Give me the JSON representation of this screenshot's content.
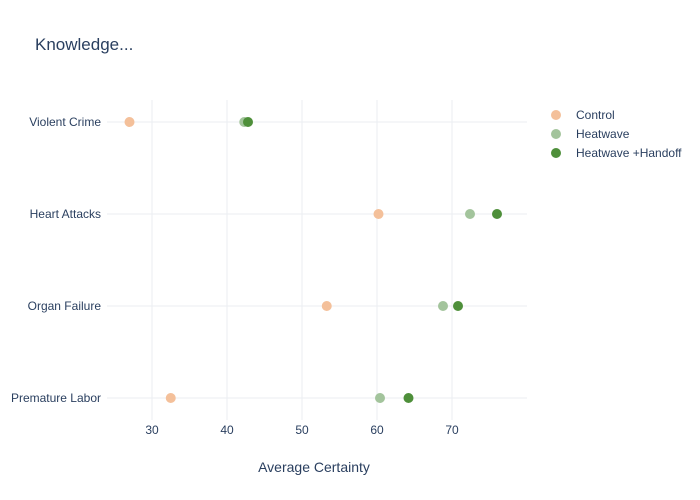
{
  "chart_data": {
    "type": "scatter",
    "title": "Knowledge...",
    "xlabel": "Average Certainty",
    "ylabel": "",
    "xlim": [
      24,
      80
    ],
    "xticks": [
      30,
      40,
      50,
      60,
      70
    ],
    "categories": [
      "Violent Crime",
      "Heart Attacks",
      "Organ Failure",
      "Premature Labor"
    ],
    "grid": true,
    "legend_position": "top-right",
    "series": [
      {
        "name": "Control",
        "color": "#f4c09a",
        "values": [
          27.0,
          60.2,
          53.3,
          32.5
        ]
      },
      {
        "name": "Heatwave",
        "color": "#a3c49c",
        "values": [
          42.3,
          72.4,
          68.8,
          60.4
        ]
      },
      {
        "name": "Heatwave +Handoff",
        "color": "#4e8f3a",
        "values": [
          42.8,
          76.0,
          70.8,
          64.2
        ]
      }
    ]
  }
}
